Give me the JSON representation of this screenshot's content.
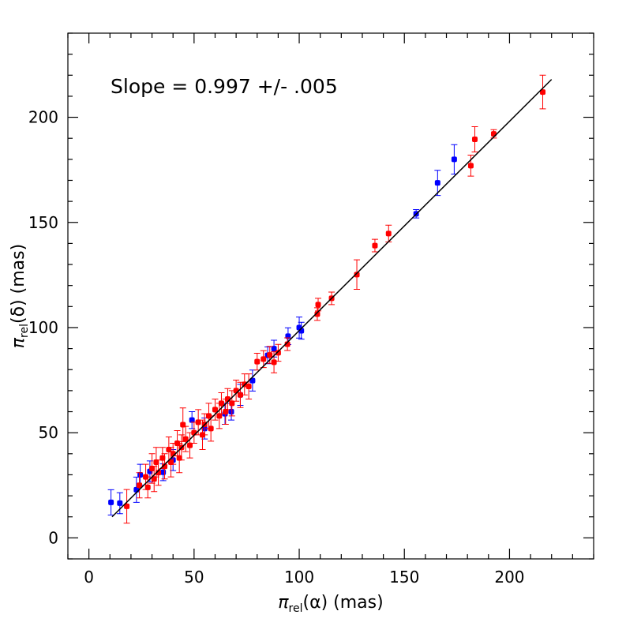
{
  "chart_data": {
    "type": "scatter",
    "annotation": "Slope = 0.997 +/- .005",
    "x_label": {
      "symbol": "π",
      "subscript": "rel",
      "rest": "(α)  (mas)"
    },
    "y_label": {
      "symbol": "π",
      "subscript": "rel",
      "rest": "(δ)  (mas)"
    },
    "xlim": [
      -10,
      240
    ],
    "ylim": [
      -10,
      240
    ],
    "xticks": [
      0,
      50,
      100,
      150,
      200
    ],
    "yticks": [
      0,
      50,
      100,
      150,
      200
    ],
    "xminorticks": [
      -10,
      10,
      20,
      30,
      40,
      60,
      70,
      80,
      90,
      110,
      120,
      130,
      140,
      160,
      170,
      180,
      190,
      210,
      220,
      230,
      240
    ],
    "yminorticks": [
      -10,
      10,
      20,
      30,
      40,
      60,
      70,
      80,
      90,
      110,
      120,
      130,
      140,
      160,
      170,
      180,
      190,
      210,
      220,
      230,
      240
    ],
    "fit_line": {
      "x": [
        11,
        220
      ],
      "y": [
        10,
        218
      ],
      "color": "#000000"
    },
    "series": [
      {
        "color": "#0000ff",
        "x": [
          10.5,
          14.7,
          22.6,
          24.4,
          29,
          35.3,
          40,
          49,
          55,
          64.7,
          67.7,
          72,
          77.8,
          85,
          88,
          94.7,
          100,
          101,
          155.6,
          165.8,
          173.7
        ],
        "values": [
          16.9,
          16.5,
          22.9,
          30,
          31.6,
          31.2,
          37,
          56,
          52,
          59,
          60,
          68,
          74.8,
          86.8,
          90,
          95.9,
          100,
          98.5,
          154.1,
          168.8,
          180
        ],
        "errors": [
          6,
          5,
          6,
          5,
          5,
          4,
          5,
          4,
          5,
          5,
          4,
          5,
          5,
          4,
          4,
          4,
          5,
          4,
          2,
          6,
          7
        ]
      },
      {
        "color": "#ff0000",
        "x": [
          18,
          24,
          27,
          28,
          30,
          31,
          32,
          33,
          35,
          36,
          38,
          39,
          40,
          42,
          43,
          44,
          44.7,
          46,
          48,
          50,
          52,
          54,
          55,
          57,
          58,
          60,
          62,
          63,
          65,
          66,
          68,
          70,
          72,
          74,
          76,
          80,
          83,
          86,
          88,
          90,
          94.4,
          108.6,
          109,
          115.4,
          127.4,
          136,
          142.5,
          181.6,
          183.5,
          192.5,
          215.8
        ],
        "values": [
          15,
          25,
          29,
          24,
          33,
          28,
          36,
          31,
          38,
          34,
          42,
          36,
          40,
          45,
          38,
          43,
          53.8,
          47,
          44,
          50,
          55,
          49,
          54,
          58,
          52,
          61,
          58,
          64,
          60,
          66,
          64,
          70,
          68,
          73,
          72,
          83.8,
          85,
          87,
          83.5,
          88,
          92.1,
          106.4,
          110.9,
          113.9,
          125.2,
          139,
          144.7,
          177,
          189.5,
          192.1,
          212
        ],
        "errors": [
          8,
          6,
          6,
          5,
          7,
          6,
          7,
          6,
          5,
          6,
          6,
          7,
          5,
          6,
          7,
          6,
          8,
          6,
          6,
          5,
          6,
          7,
          5,
          6,
          6,
          5,
          6,
          5,
          6,
          5,
          6,
          5,
          6,
          5,
          6,
          4,
          4,
          4,
          5,
          4,
          3,
          3,
          3,
          3,
          7,
          3,
          4,
          5,
          6,
          2,
          8
        ]
      }
    ]
  }
}
